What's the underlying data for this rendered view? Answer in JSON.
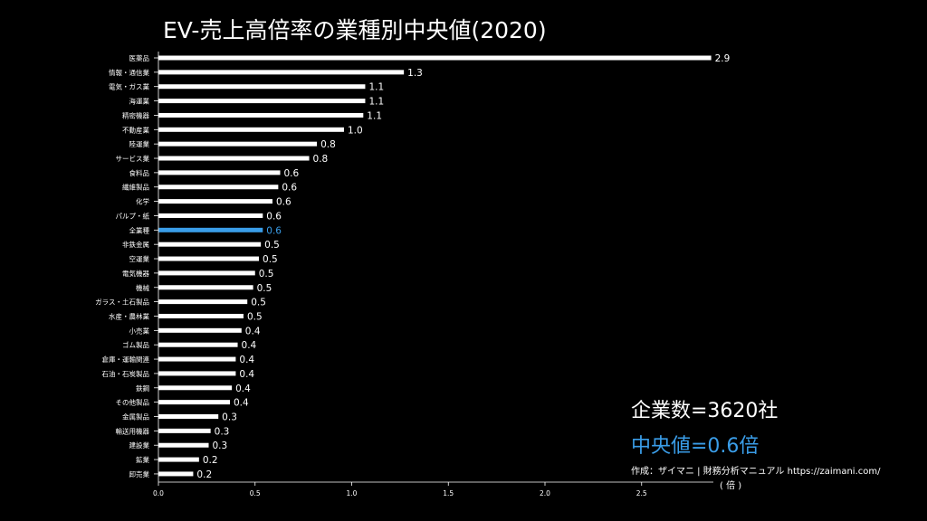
{
  "title": "EV-売上高倍率の業種別中央値(2020)",
  "annotations": {
    "company_count": "企業数=3620社",
    "median": "中央値=0.6倍",
    "credit": "作成：ザイマニ | 財務分析マニュアル https://zaimani.com/",
    "x_unit": "( 倍 )"
  },
  "colors": {
    "bar": "#ffffff",
    "highlight": "#3a9de8",
    "background": "#000000",
    "axis": "#ffffff"
  },
  "chart_data": {
    "type": "bar",
    "orientation": "horizontal",
    "categories": [
      "医薬品",
      "情報・通信業",
      "電気・ガス業",
      "海運業",
      "精密機器",
      "不動産業",
      "陸運業",
      "サービス業",
      "食料品",
      "繊維製品",
      "化学",
      "パルプ・紙",
      "全業種",
      "非鉄金属",
      "空運業",
      "電気機器",
      "機械",
      "ガラス・土石製品",
      "水産・農林業",
      "小売業",
      "ゴム製品",
      "倉庫・運輸関連",
      "石油・石炭製品",
      "鉄鋼",
      "その他製品",
      "金属製品",
      "輸送用機器",
      "建設業",
      "鉱業",
      "卸売業"
    ],
    "values": [
      2.9,
      1.3,
      1.1,
      1.1,
      1.1,
      1.0,
      0.8,
      0.8,
      0.6,
      0.6,
      0.6,
      0.6,
      0.6,
      0.5,
      0.5,
      0.5,
      0.5,
      0.5,
      0.5,
      0.4,
      0.4,
      0.4,
      0.4,
      0.4,
      0.4,
      0.3,
      0.3,
      0.3,
      0.2,
      0.2
    ],
    "plot_values": [
      2.86,
      1.27,
      1.07,
      1.07,
      1.06,
      0.96,
      0.82,
      0.78,
      0.63,
      0.62,
      0.59,
      0.54,
      0.54,
      0.53,
      0.52,
      0.5,
      0.49,
      0.46,
      0.44,
      0.43,
      0.41,
      0.4,
      0.4,
      0.38,
      0.37,
      0.31,
      0.27,
      0.26,
      0.21,
      0.18
    ],
    "highlight_category": "全業種",
    "xticks": [
      "0.0",
      "0.5",
      "1.0",
      "1.5",
      "2.0",
      "2.5"
    ],
    "xlim": [
      0,
      2.9
    ],
    "title": "EV-売上高倍率の業種別中央値(2020)",
    "xlabel": "( 倍 )",
    "ylabel": ""
  }
}
